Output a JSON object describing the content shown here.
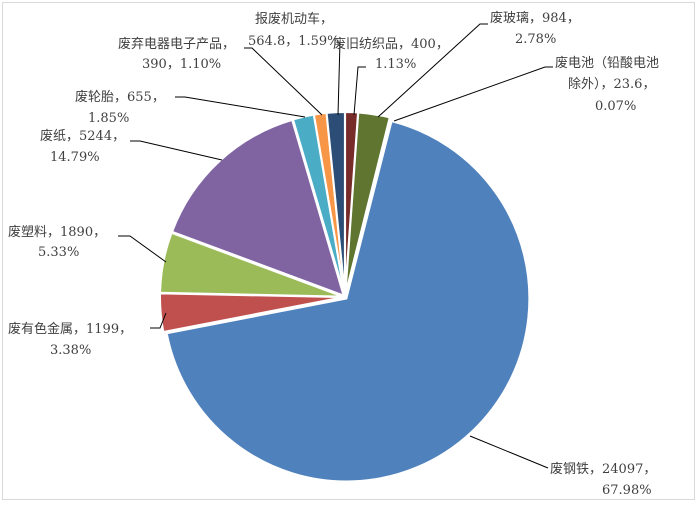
{
  "chart_data": {
    "type": "pie",
    "title": "",
    "categories": [
      "废钢铁",
      "废有色金属",
      "废塑料",
      "废纸",
      "废轮胎",
      "废弃电器电子产品",
      "报废机动车",
      "废旧纺织品",
      "废玻璃",
      "废电池（铅酸电池除外）"
    ],
    "values": [
      24097,
      1199,
      1890,
      5244,
      655,
      390,
      564.8,
      400,
      984,
      23.6
    ],
    "percents": [
      "67.98%",
      "3.38%",
      "5.33%",
      "14.79%",
      "1.85%",
      "1.10%",
      "1.59%",
      "1.13%",
      "2.78%",
      "0.07%"
    ],
    "colors": [
      "#4F81BD",
      "#C0504D",
      "#9BBB59",
      "#8064A2",
      "#4BACC6",
      "#F79646",
      "#2C4D75",
      "#772C2A",
      "#5F7530",
      "#276A7C"
    ],
    "labels": [
      [
        "废钢铁，24097，",
        "67.98%"
      ],
      [
        "废有色金属，1199，",
        "3.38%"
      ],
      [
        "废塑料，1890，",
        "5.33%"
      ],
      [
        "废纸，5244，",
        "14.79%"
      ],
      [
        "废轮胎，655，",
        "1.85%"
      ],
      [
        "废弃电器电子产品，",
        "390，1.10%"
      ],
      [
        "报废机动车，",
        "564.8，1.59%"
      ],
      [
        "废旧纺织品，400，",
        "1.13%"
      ],
      [
        "废玻璃，984，",
        "2.78%"
      ],
      [
        "废电池（铅酸电池",
        "除外），23.6，",
        "0.07%"
      ]
    ],
    "legend": "none",
    "label_style": "category, value, percent with leader lines"
  }
}
